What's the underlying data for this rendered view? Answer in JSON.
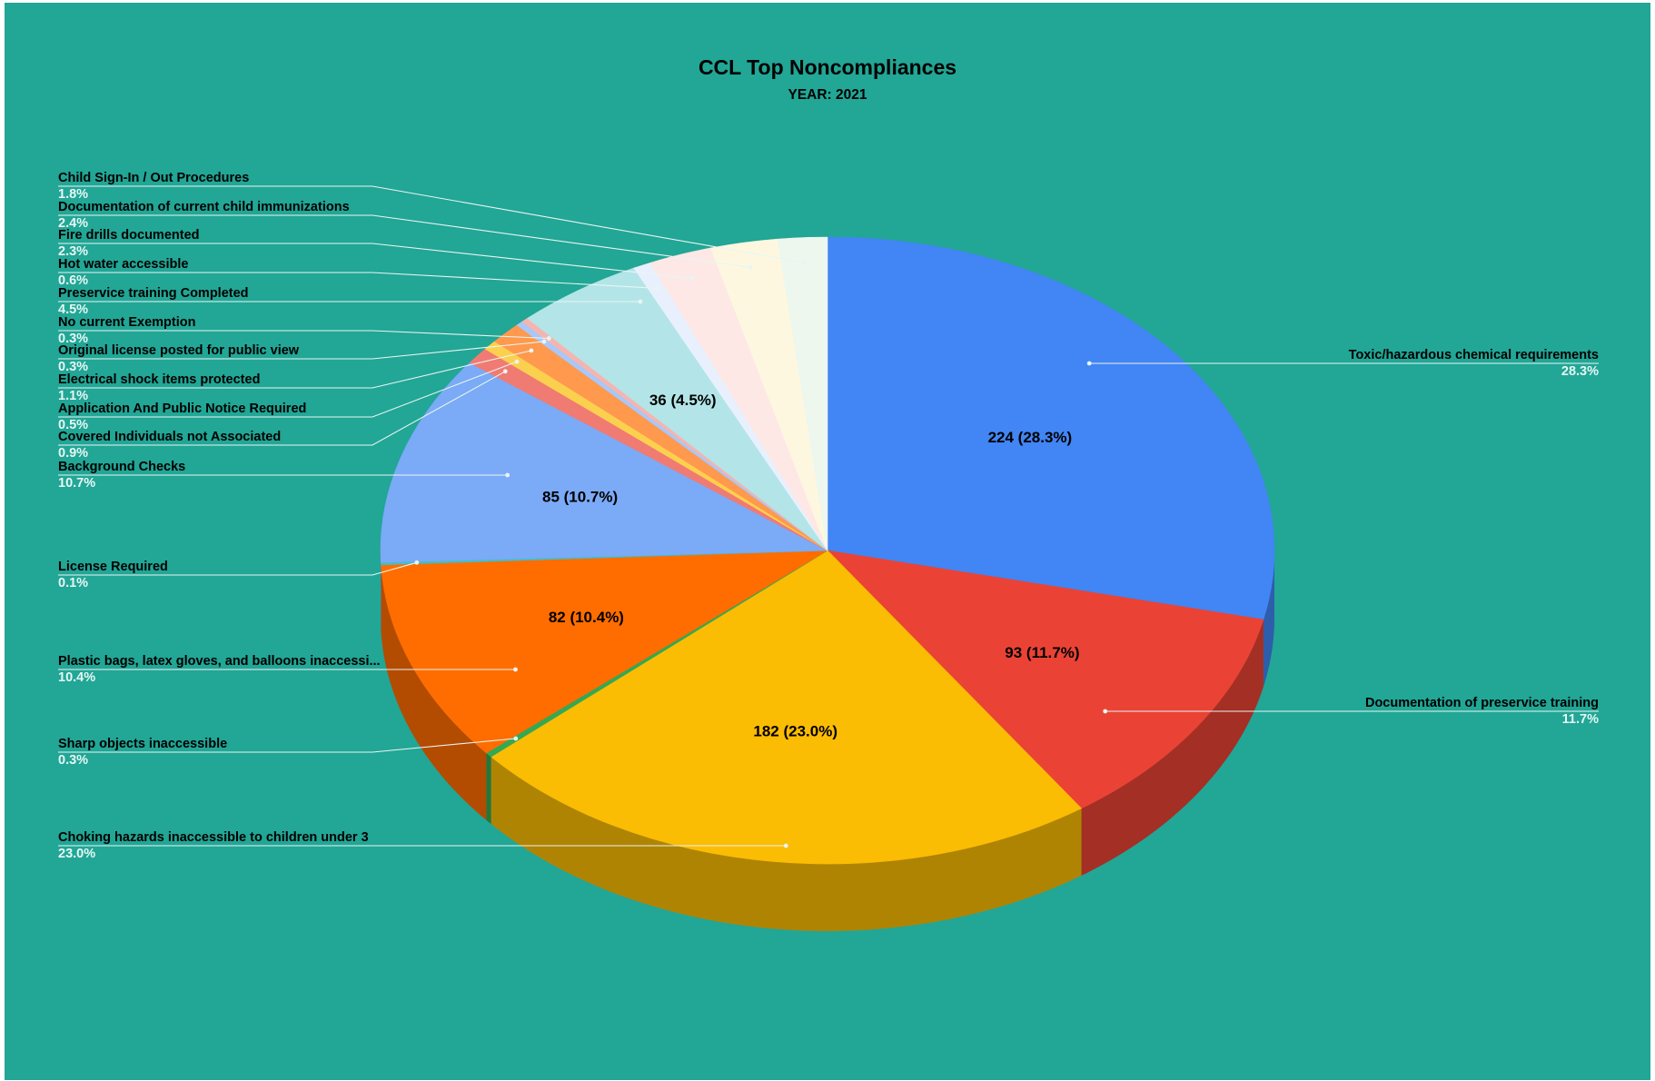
{
  "chart_data": {
    "type": "pie",
    "style": "3d",
    "title": "CCL Top Noncompliances",
    "subtitle": "YEAR: 2021",
    "background": "#22a696",
    "legend": "none",
    "slices": [
      {
        "name": "Toxic/hazardous chemical requirements",
        "value": 224,
        "percent_label": "28.3%",
        "value_label": "224 (28.3%)",
        "color": "#4285f4"
      },
      {
        "name": "Documentation of preservice training",
        "value": 93,
        "percent_label": "11.7%",
        "value_label": "93 (11.7%)",
        "color": "#ea4335"
      },
      {
        "name": "Choking hazards inaccessible to children under 3",
        "value": 182,
        "percent_label": "23.0%",
        "value_label": "182 (23.0%)",
        "color": "#fbbc04"
      },
      {
        "name": "Sharp objects inaccessible",
        "value": 2,
        "percent_label": "0.3%",
        "value_label": "",
        "color": "#34a853"
      },
      {
        "name": "Plastic bags, latex gloves, and balloons inaccessi...",
        "value": 82,
        "percent_label": "10.4%",
        "value_label": "82 (10.4%)",
        "color": "#ff6d01"
      },
      {
        "name": "License Required",
        "value": 1,
        "percent_label": "0.1%",
        "value_label": "",
        "color": "#46bdc6"
      },
      {
        "name": "Background Checks",
        "value": 85,
        "percent_label": "10.7%",
        "value_label": "85 (10.7%)",
        "color": "#7baaf7"
      },
      {
        "name": "Covered Individuals not Associated",
        "value": 7,
        "percent_label": "0.9%",
        "value_label": "",
        "color": "#f07b72"
      },
      {
        "name": "Application And Public Notice Required",
        "value": 4,
        "percent_label": "0.5%",
        "value_label": "",
        "color": "#fcd04f"
      },
      {
        "name": "Electrical shock items protected",
        "value": 9,
        "percent_label": "1.1%",
        "value_label": "",
        "color": "#ff994d"
      },
      {
        "name": "Original license posted for public view",
        "value": 2,
        "percent_label": "0.3%",
        "value_label": "",
        "color": "#a8c7fa"
      },
      {
        "name": "No current Exemption",
        "value": 2,
        "percent_label": "0.3%",
        "value_label": "",
        "color": "#f5b5af"
      },
      {
        "name": "Preservice training Completed",
        "value": 36,
        "percent_label": "4.5%",
        "value_label": "36 (4.5%)",
        "color": "#b3e5e8"
      },
      {
        "name": "Hot water accessible",
        "value": 5,
        "percent_label": "0.6%",
        "value_label": "",
        "color": "#e8f0fe"
      },
      {
        "name": "Fire drills documented",
        "value": 18,
        "percent_label": "2.3%",
        "value_label": "",
        "color": "#fde8e6"
      },
      {
        "name": "Documentation of current child immunizations",
        "value": 19,
        "percent_label": "2.4%",
        "value_label": "",
        "color": "#fef7e0"
      },
      {
        "name": "Child Sign-In / Out Procedures",
        "value": 14,
        "percent_label": "1.8%",
        "value_label": "",
        "color": "#edf7ed"
      }
    ]
  }
}
